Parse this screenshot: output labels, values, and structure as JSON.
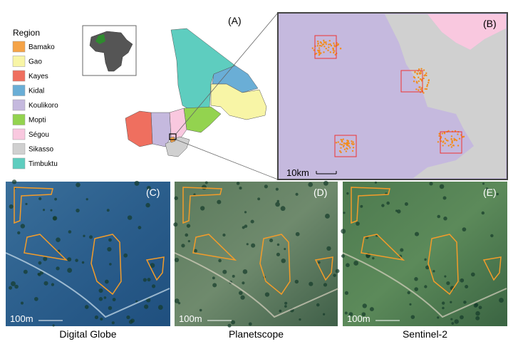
{
  "legend": {
    "title": "Region",
    "items": [
      {
        "label": "Bamako",
        "color": "#f5a347"
      },
      {
        "label": "Gao",
        "color": "#f8f5a6"
      },
      {
        "label": "Kayes",
        "color": "#ef6f5f"
      },
      {
        "label": "Kidal",
        "color": "#6aaed6"
      },
      {
        "label": "Koulikoro",
        "color": "#c5b9de"
      },
      {
        "label": "Mopti",
        "color": "#93d34f"
      },
      {
        "label": "Ségou",
        "color": "#f9c8df"
      },
      {
        "label": "Sikasso",
        "color": "#d0d0d0"
      },
      {
        "label": "Timbuktu",
        "color": "#5ecdbf"
      }
    ]
  },
  "panels": [
    {
      "label": "(A)"
    },
    {
      "label": "(B)",
      "scale": "10km"
    },
    {
      "label": "(C)",
      "scale": "100m",
      "caption": "Digital Globe"
    },
    {
      "label": "(D)",
      "scale": "100m",
      "caption": "Planetscope"
    },
    {
      "label": "(E)",
      "scale": "100m",
      "caption": "Sentinel-2"
    }
  ]
}
